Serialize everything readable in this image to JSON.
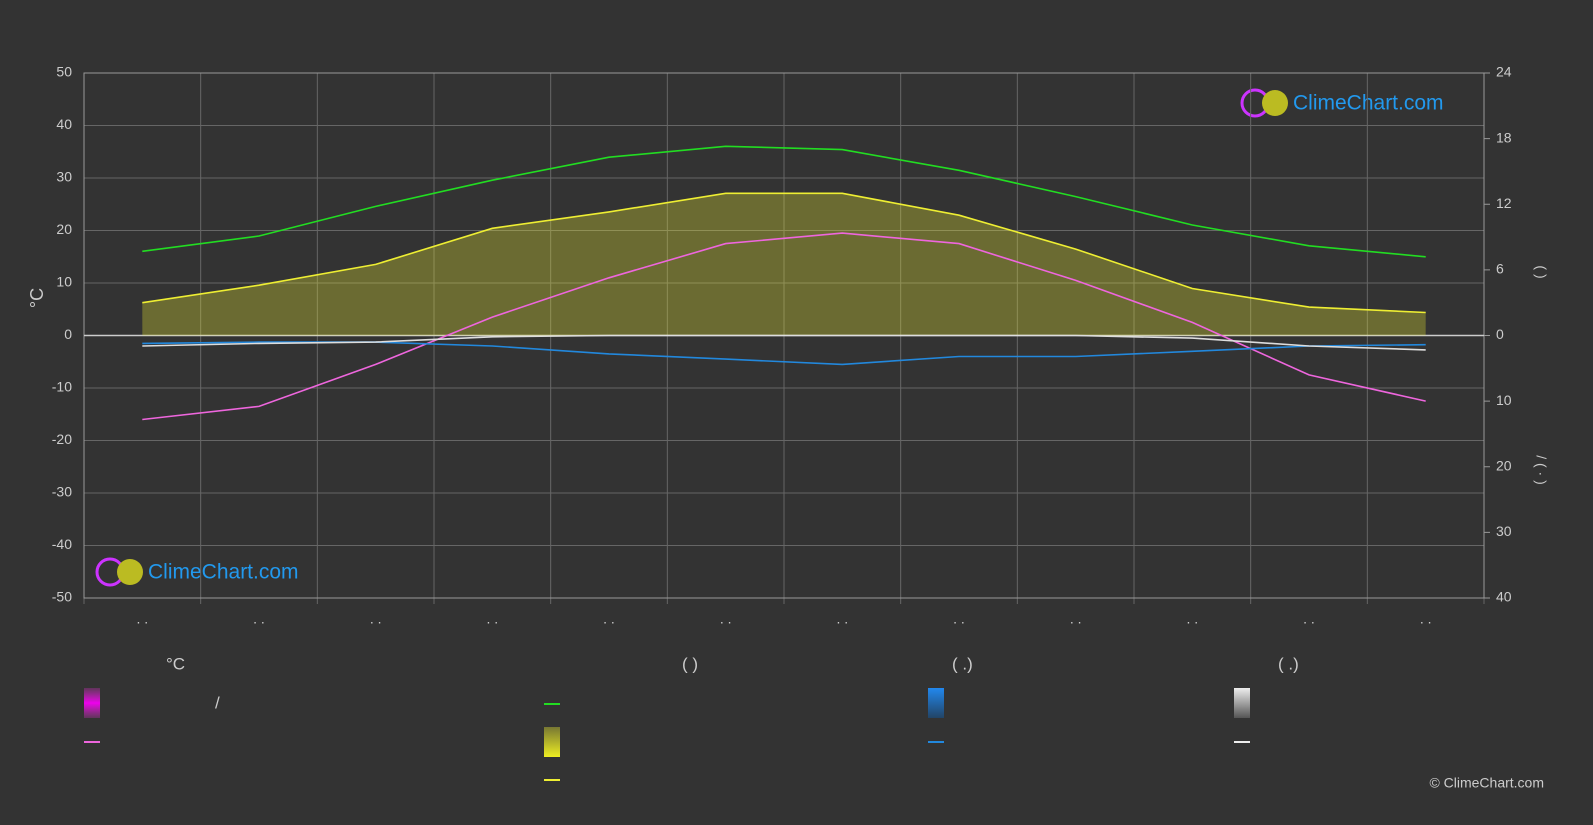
{
  "chart_data": {
    "type": "line",
    "ylabel": "°C",
    "y2label": "(            )",
    "y3label": "/        (  ·  )",
    "categories": [
      ". .",
      ". .",
      ". .",
      ". .",
      ". .",
      ". .",
      ". .",
      ". .",
      ". .",
      ". .",
      ". .",
      ". ."
    ],
    "ylim": [
      -50,
      50
    ],
    "yticks": [
      -50,
      -40,
      -30,
      -20,
      -10,
      0,
      10,
      20,
      30,
      40,
      50
    ],
    "y2lim": [
      0,
      24
    ],
    "y2ticks": [
      0,
      6,
      12,
      18,
      24
    ],
    "y3lim": [
      0,
      40
    ],
    "y3ticks": [
      10,
      20,
      30,
      40
    ],
    "grid": true,
    "series": [
      {
        "color": "#22dd22",
        "axis": "y2",
        "values": [
          7.7,
          9.1,
          11.8,
          14.2,
          16.3,
          17.3,
          17.0,
          15.1,
          12.7,
          10.1,
          8.2,
          7.2
        ]
      },
      {
        "color": "#eeee33",
        "axis": "y2",
        "area": true,
        "values": [
          3.0,
          4.6,
          6.5,
          9.8,
          11.3,
          13.0,
          13.0,
          11.0,
          7.9,
          4.3,
          2.6,
          2.1
        ]
      },
      {
        "color": "#ee66dd",
        "values": [
          -16,
          -13.5,
          -5.5,
          3.5,
          11,
          17.5,
          19.5,
          17.5,
          10.5,
          2.5,
          -7.5,
          -12.5
        ]
      },
      {
        "color": "#2288dd",
        "axis": "y3",
        "values": [
          1.2,
          1.0,
          1.0,
          1.6,
          2.8,
          3.6,
          4.4,
          3.2,
          3.2,
          2.4,
          1.6,
          1.4
        ]
      },
      {
        "color": "#dddddd",
        "axis": "y3",
        "values": [
          1.6,
          1.2,
          1.0,
          0.2,
          0,
          0,
          0,
          0,
          0,
          0.4,
          1.6,
          2.2
        ]
      }
    ],
    "logo": "ClimeChart.com",
    "copyright": "© ClimeChart.com",
    "legend": {
      "headers": [
        "°C",
        "(          )",
        "(   .)",
        "(   .)"
      ],
      "slash": "/"
    }
  }
}
